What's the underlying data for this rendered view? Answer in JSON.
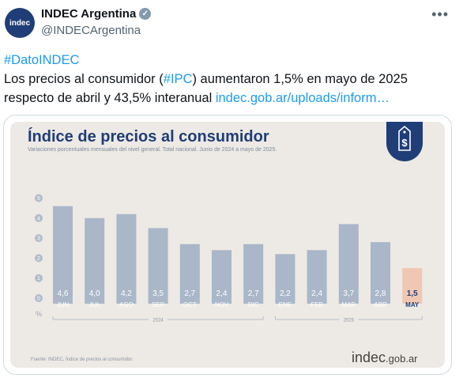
{
  "tweet": {
    "author_name": "INDEC Argentina",
    "avatar_text": "indec",
    "handle": "@INDECArgentina",
    "more_label": "•••",
    "hashtag": "#DatoINDEC",
    "text_before": "Los precios al consumidor (",
    "text_hashtag": "#IPC",
    "text_after": ") aumentaron 1,5% en mayo de 2025 respecto de abril y 43,5% interanual ",
    "link_text": "indec.gob.ar/uploads/inform…"
  },
  "image": {
    "brand": "indec",
    "brand_domain": ".gob.ar",
    "tag_icon": "dollar-tag-icon"
  },
  "chart_data": {
    "type": "bar",
    "title": "Índice de precios al consumidor",
    "subtitle": "Variaciones porcentuales mensuales del nivel general. Total nacional. Junio de 2024 a mayo de 2025.",
    "source": "Fuente: INDEC, Índice de precios al consumidor.",
    "categories": [
      "JUN",
      "JUL",
      "AGO",
      "SEP",
      "OCT",
      "NOV",
      "DIC",
      "ENE",
      "FEB",
      "MAR",
      "ABR",
      "MAY"
    ],
    "values": [
      4.6,
      4.0,
      4.2,
      3.5,
      2.7,
      2.4,
      2.7,
      2.2,
      2.4,
      3.7,
      2.8,
      1.5
    ],
    "value_labels": [
      "4,6",
      "4,0",
      "4,2",
      "3,5",
      "2,7",
      "2,4",
      "2,7",
      "2,2",
      "2,4",
      "3,7",
      "2,8",
      "1,5"
    ],
    "y_ticks": [
      "0",
      "1",
      "2",
      "3",
      "4",
      "5"
    ],
    "y_unit": "%",
    "ylim": [
      0,
      5
    ],
    "year_groups": [
      {
        "label": "2024",
        "from": 0,
        "to": 6
      },
      {
        "label": "2025",
        "from": 7,
        "to": 11
      }
    ],
    "highlight_index": 11,
    "colors": {
      "bar": "#a9b7c9",
      "highlight": "#f0c7b2",
      "value_label": "#ffffff",
      "highlight_label": "#1f3e77",
      "title": "#1f3e77",
      "tick": "#ffffff",
      "year": "#8a94a5"
    }
  }
}
